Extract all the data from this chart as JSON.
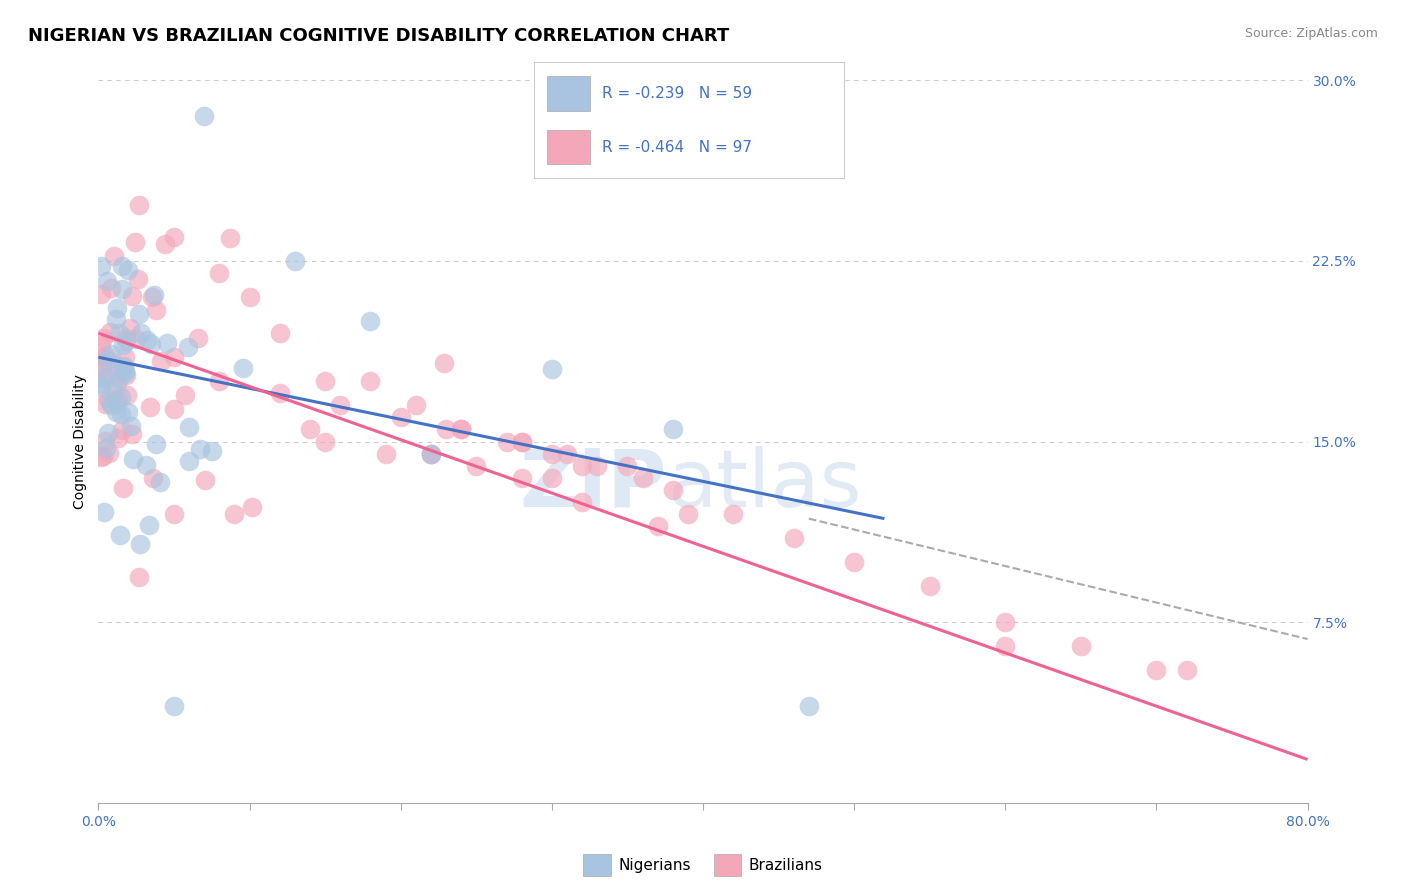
{
  "title": "NIGERIAN VS BRAZILIAN COGNITIVE DISABILITY CORRELATION CHART",
  "source": "Source: ZipAtlas.com",
  "ylabel": "Cognitive Disability",
  "xlim": [
    0.0,
    0.8
  ],
  "ylim": [
    0.0,
    0.3
  ],
  "grid_color": "#cccccc",
  "background_color": "#ffffff",
  "nigerian_color": "#a8c4e0",
  "brazilian_color": "#f4a7b9",
  "nigerian_line_color": "#4472c4",
  "brazilian_line_color": "#f06292",
  "dashed_line_color": "#aaaaaa",
  "R_nigerian": -0.239,
  "N_nigerian": 59,
  "R_brazilian": -0.464,
  "N_brazilian": 97,
  "watermark_zip": "ZIP",
  "watermark_atlas": "atlas",
  "title_fontsize": 13,
  "axis_label_fontsize": 10,
  "tick_fontsize": 10,
  "legend_fontsize": 11,
  "nigerian_line_x": [
    0.0,
    0.52
  ],
  "nigerian_line_y": [
    0.185,
    0.118
  ],
  "brazilian_line_x": [
    0.0,
    0.8
  ],
  "brazilian_line_y": [
    0.195,
    0.018
  ],
  "dashed_line_x": [
    0.47,
    0.8
  ],
  "dashed_line_y": [
    0.118,
    0.068
  ]
}
